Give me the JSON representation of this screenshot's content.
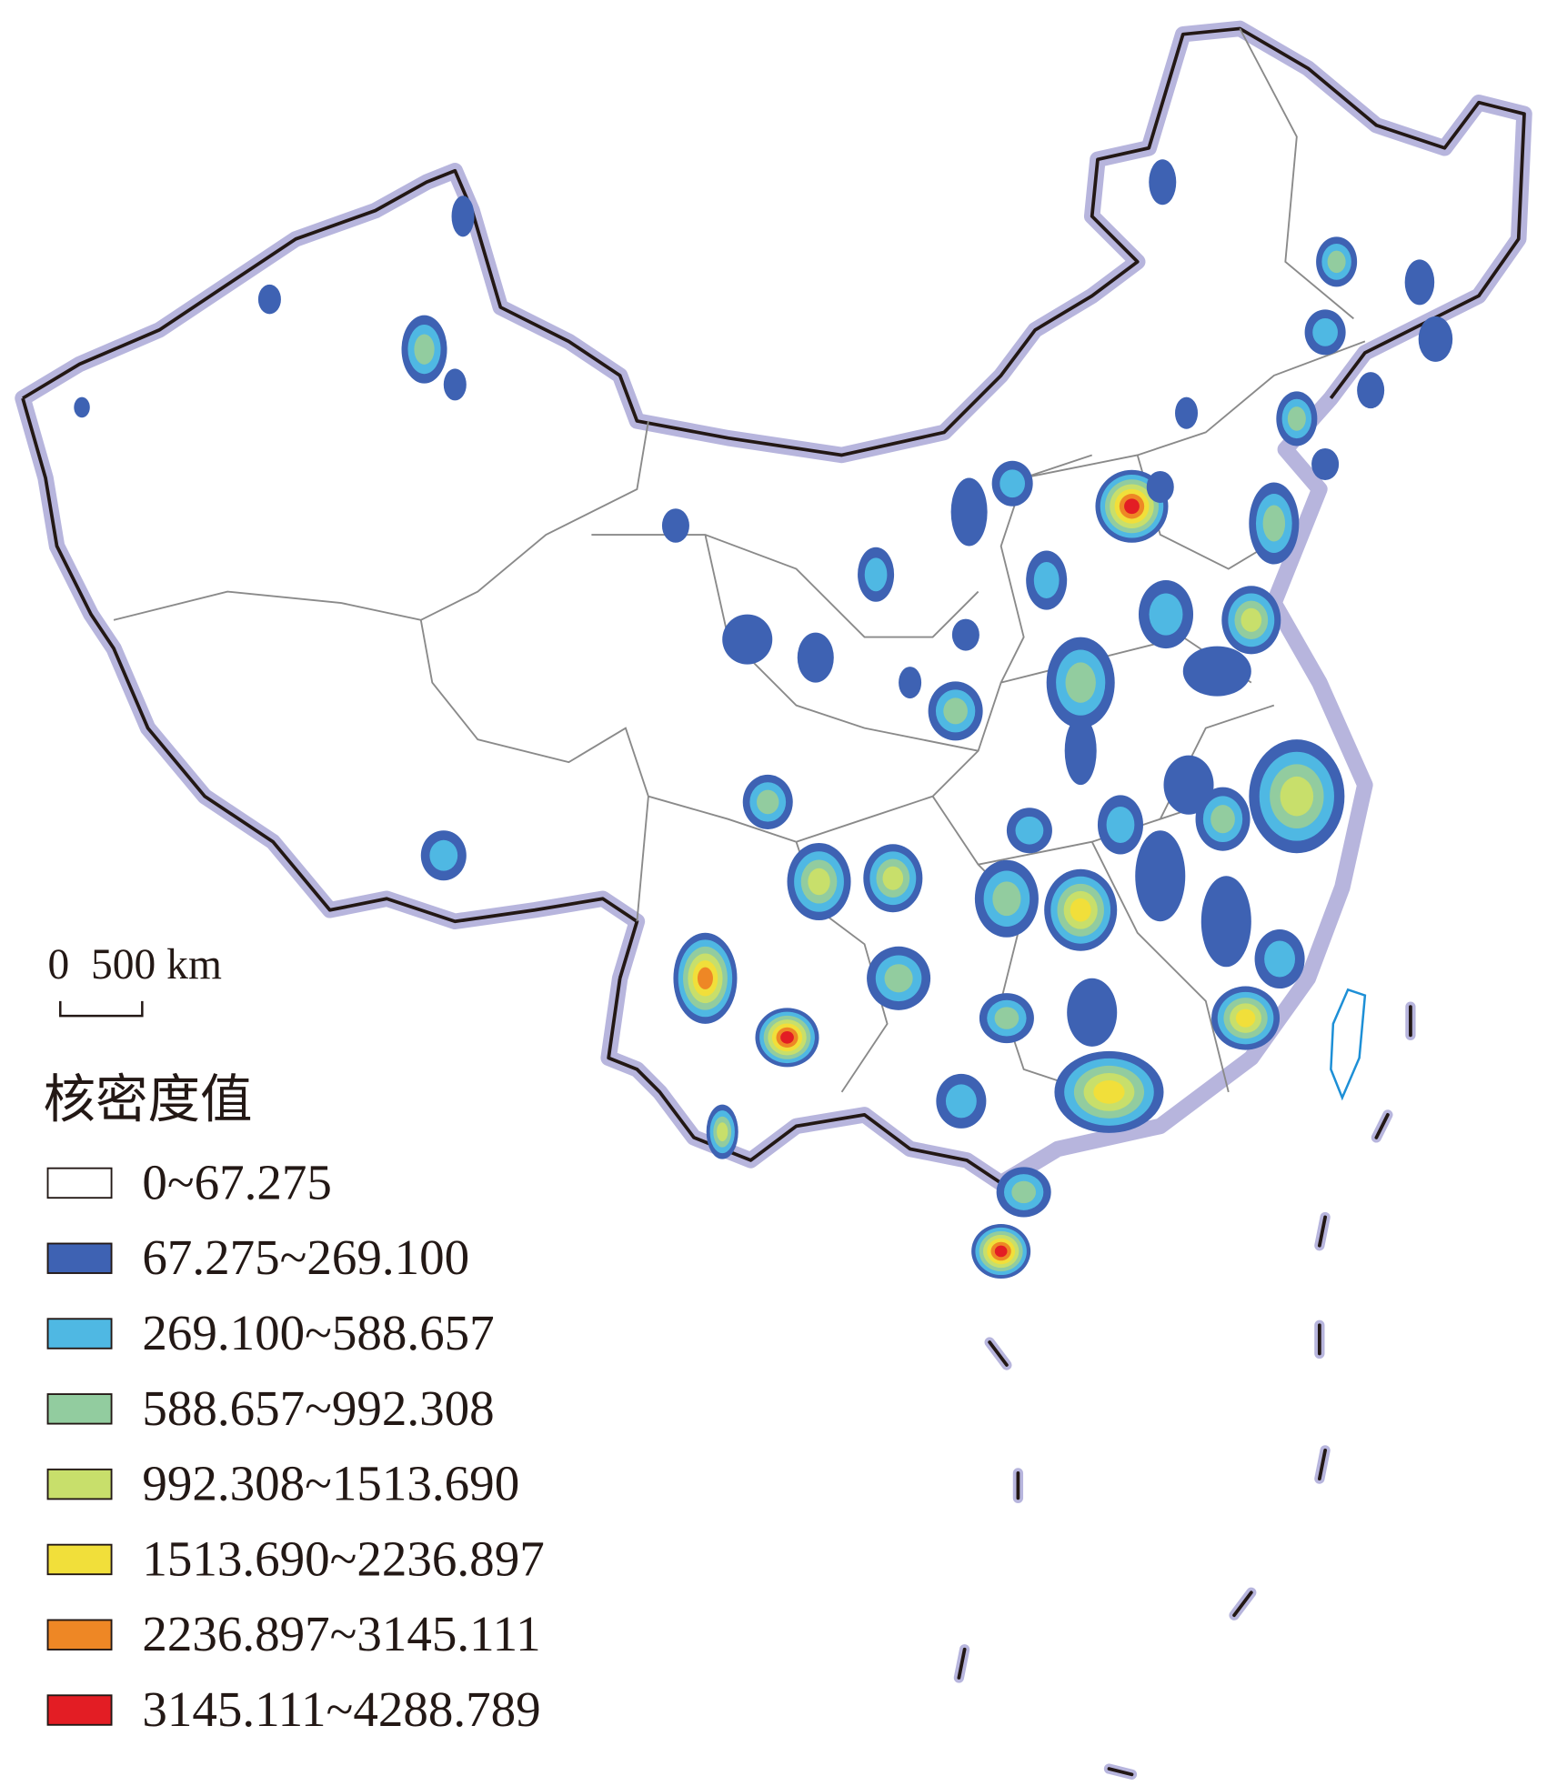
{
  "scale_bar": {
    "label": "0  500 km"
  },
  "legend": {
    "title": "核密度值",
    "items": [
      {
        "label": "0~67.275",
        "color": "#ffffff"
      },
      {
        "label": "67.275~269.100",
        "color": "#3e62b3"
      },
      {
        "label": "269.100~588.657",
        "color": "#4fb8e3"
      },
      {
        "label": "588.657~992.308",
        "color": "#92cc9f"
      },
      {
        "label": "992.308~1513.690",
        "color": "#c8df6b"
      },
      {
        "label": "1513.690~2236.897",
        "color": "#f1df3a"
      },
      {
        "label": "2236.897~3145.111",
        "color": "#ee8725"
      },
      {
        "label": "3145.111~4288.789",
        "color": "#e31d24"
      }
    ]
  }
}
